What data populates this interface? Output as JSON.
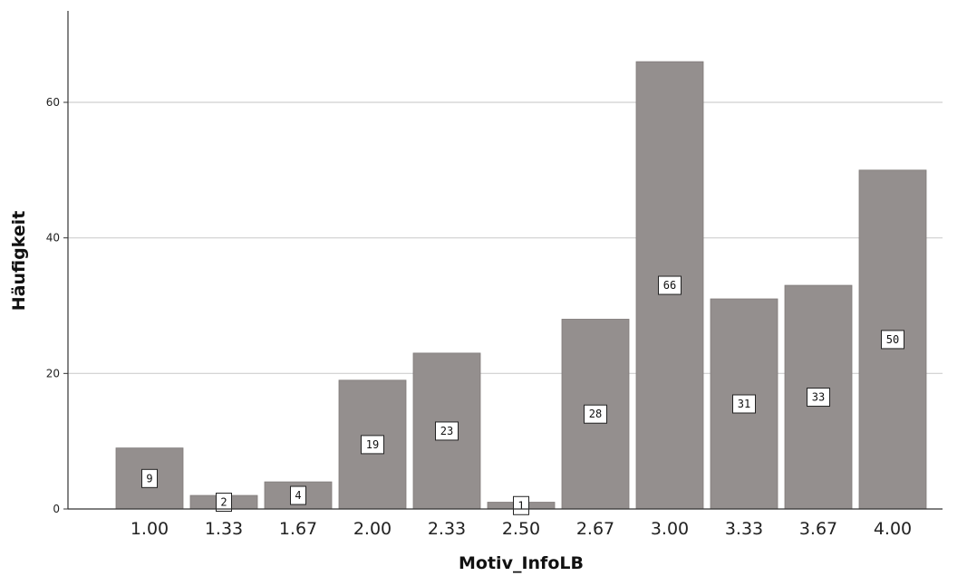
{
  "chart_data": {
    "type": "bar",
    "categories": [
      "1.00",
      "1.33",
      "1.67",
      "2.00",
      "2.33",
      "2.50",
      "2.67",
      "3.00",
      "3.33",
      "3.67",
      "4.00"
    ],
    "values": [
      9,
      2,
      4,
      19,
      23,
      1,
      28,
      66,
      31,
      33,
      50
    ],
    "data_labels": [
      "9",
      "2",
      "4",
      "19",
      "23",
      "1",
      "28",
      "66",
      "31",
      "33",
      "50"
    ],
    "xlabel": "Motiv_InfoLB",
    "ylabel": "Häufigkeit",
    "ylim": [
      0,
      72
    ],
    "yticks": [
      "0",
      "20",
      "40",
      "60"
    ],
    "grid": "horizontal",
    "colors": {
      "bar": "#948f8e",
      "grid": "#cfcfcf",
      "axis": "#333333"
    }
  }
}
